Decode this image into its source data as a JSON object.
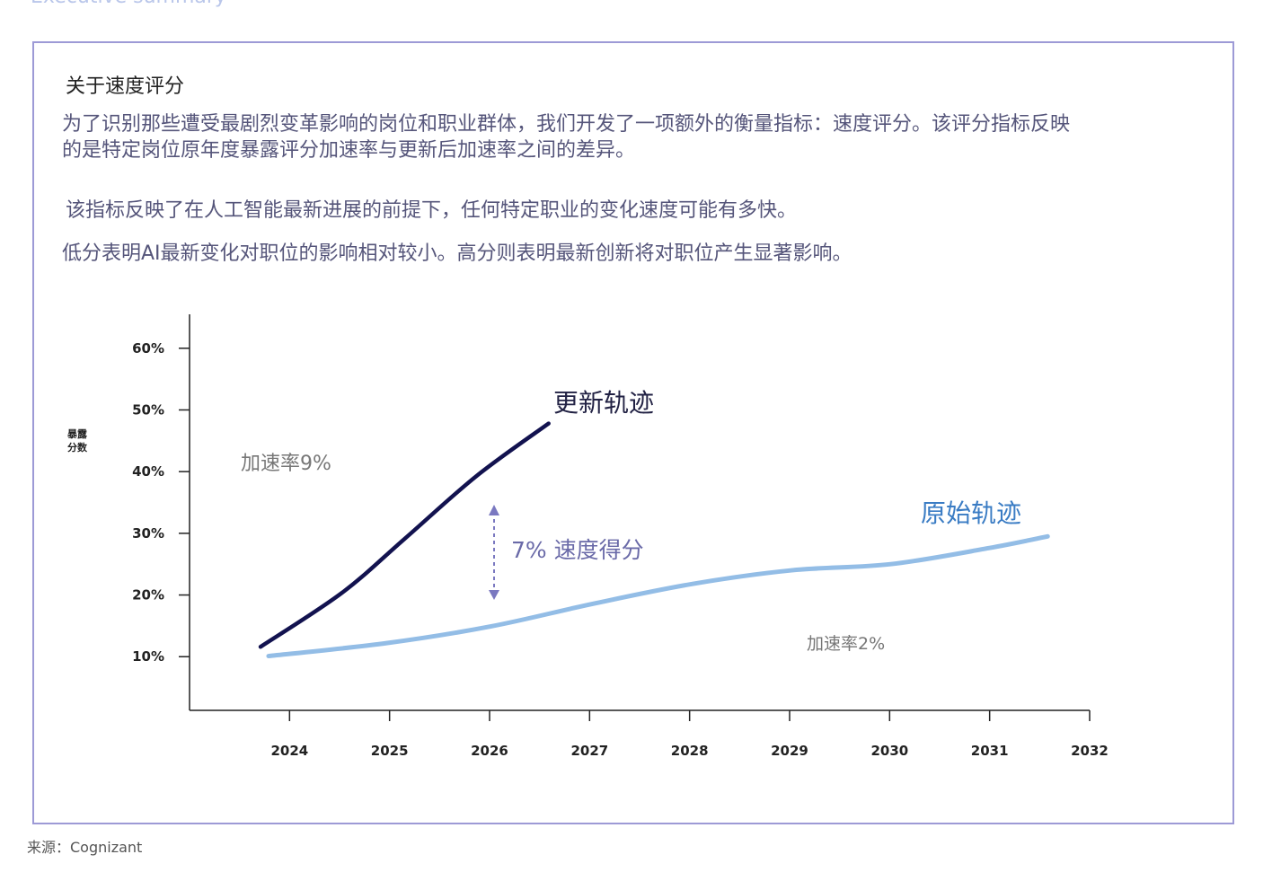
{
  "header": "Executive summary",
  "section": {
    "title": "关于速度评分",
    "paragraphs": [
      "为了识别那些遭受最剧烈变革影响的岗位和职业群体，我们开发了一项额外的衡量指标：速度评分。该评分指标反映",
      "的是特定岗位原年度暴露评分加速率与更新后加速率之间的差异。",
      "该指标反映了在人工智能最新进展的前提下，任何特定职业的变化速度可能有多快。",
      "低分表明AI最新变化对职位的影响相对较小。高分则表明最新创新将对职位产生显著影响。"
    ]
  },
  "chart_data": {
    "type": "line",
    "y_label": [
      "暴露",
      "分数"
    ],
    "xlim": [
      2023,
      2032
    ],
    "xticks": [
      2024,
      2025,
      2026,
      2027,
      2028,
      2029,
      2030,
      2031,
      2032
    ],
    "ylim": [
      1.3,
      65.5
    ],
    "yticks": [
      {
        "value": 10,
        "label": "10%"
      },
      {
        "value": 20,
        "label": "20%"
      },
      {
        "value": 30,
        "label": "30%"
      },
      {
        "value": 40,
        "label": "40%"
      },
      {
        "value": 50,
        "label": "50%"
      },
      {
        "value": 60,
        "label": "60%"
      }
    ],
    "series": [
      {
        "name": "更新轨迹",
        "color": "#12124f",
        "x": [
          2023.71,
          2024.52,
          2025.15,
          2025.87,
          2026.59
        ],
        "values": [
          11.6,
          20.3,
          29.1,
          39.3,
          47.8
        ]
      },
      {
        "name": "原始轨迹",
        "color": "#93bde6",
        "x": [
          2023.79,
          2024.97,
          2026.01,
          2027.04,
          2028.03,
          2029.02,
          2030.01,
          2030.99,
          2031.58
        ],
        "values": [
          10.1,
          12.2,
          14.9,
          18.6,
          21.8,
          24.0,
          25.0,
          27.6,
          29.5
        ]
      }
    ],
    "annotations": [
      "加速率9%",
      "7% 速度得分",
      "加速率2%"
    ]
  },
  "footer": "来源：Cognizant"
}
